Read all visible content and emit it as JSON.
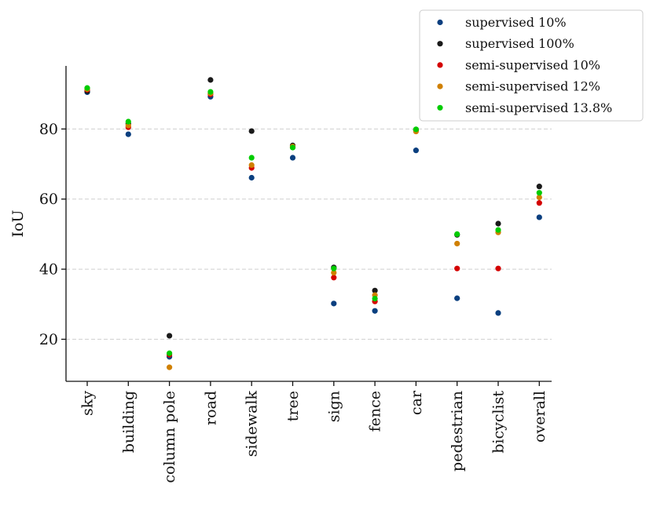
{
  "chart_data": {
    "type": "scatter",
    "ylabel": "IoU",
    "xlabel": "",
    "ylim": [
      8,
      98
    ],
    "yticks": [
      20,
      40,
      60,
      80
    ],
    "grid": "horizontal dashed",
    "legend_position": "top-right",
    "categories": [
      "sky",
      "building",
      "column pole",
      "road",
      "sidewalk",
      "tree",
      "sign",
      "fence",
      "car",
      "pedestrian",
      "bicyclist",
      "overall"
    ],
    "series": [
      {
        "name": "supervised 10%",
        "color": "#0a3f7f",
        "values": [
          90.5,
          78.5,
          15,
          89.2,
          66.1,
          71.8,
          30.2,
          28.1,
          73.9,
          31.7,
          27.5,
          54.8
        ]
      },
      {
        "name": "supervised 100%",
        "color": "#1a1a1a",
        "values": [
          90.8,
          81.5,
          21,
          94,
          79.4,
          75.3,
          40.5,
          33.9,
          79.6,
          49.8,
          53,
          63.6
        ]
      },
      {
        "name": "semi-supervised 10%",
        "color": "#d40000",
        "values": [
          91.2,
          80.5,
          15.6,
          89.9,
          68.9,
          74.8,
          37.6,
          30.8,
          79.8,
          40.2,
          40.2,
          58.9
        ]
      },
      {
        "name": "semi-supervised 12%",
        "color": "#d08000",
        "values": [
          91.4,
          81,
          12,
          90.2,
          69.7,
          75,
          39,
          32.6,
          79.3,
          47.3,
          50.5,
          60.5
        ]
      },
      {
        "name": "semi-supervised 13.8%",
        "color": "#00cc00",
        "values": [
          91.7,
          82.1,
          16,
          90.6,
          71.8,
          74.7,
          40.2,
          31.6,
          79.9,
          50,
          51.2,
          61.8
        ]
      }
    ]
  }
}
